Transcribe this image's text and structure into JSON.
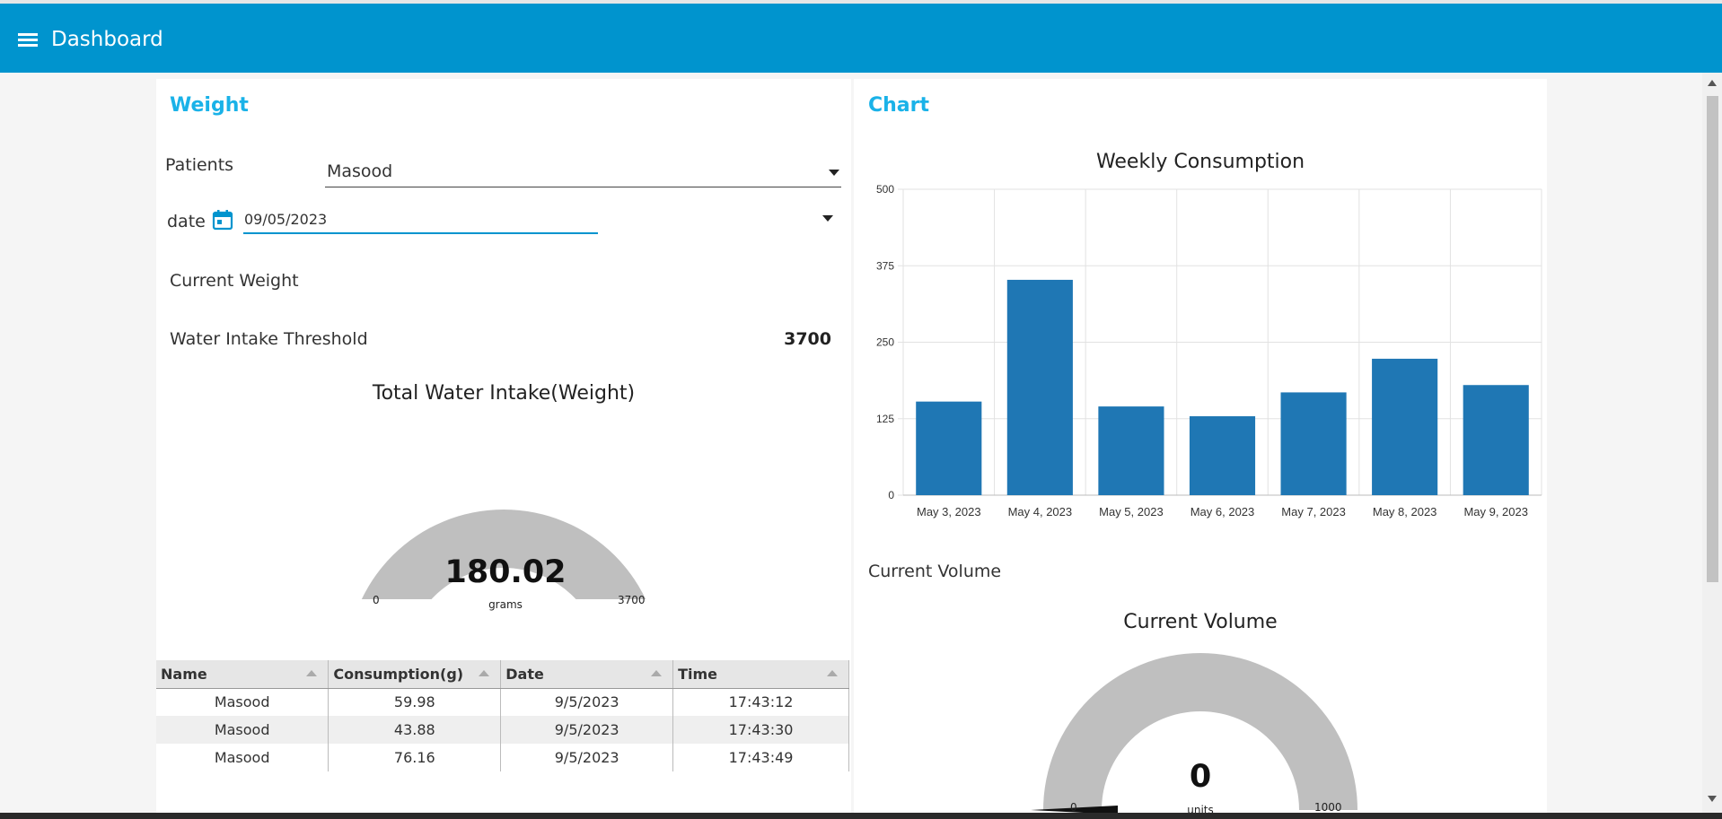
{
  "header": {
    "title": "Dashboard"
  },
  "weight_card": {
    "title": "Weight",
    "patients_label": "Patients",
    "patient_selected": "Masood",
    "date_label": "date",
    "date_value": "09/05/2023",
    "current_weight_label": "Current Weight",
    "threshold_label": "Water Intake Threshold",
    "threshold_value": "3700",
    "gauge": {
      "title": "Total Water Intake(Weight)",
      "value": "180.02",
      "value_number": 180.02,
      "units": "grams",
      "min": "0",
      "max": "3700",
      "min_number": 0,
      "max_number": 3700,
      "fill_color": "#e60000",
      "track_color": "#bfbfbf"
    },
    "table": {
      "columns": [
        "Name",
        "Consumption(g)",
        "Date",
        "Time"
      ],
      "rows": [
        [
          "Masood",
          "59.98",
          "9/5/2023",
          "17:43:12"
        ],
        [
          "Masood",
          "43.88",
          "9/5/2023",
          "17:43:30"
        ],
        [
          "Masood",
          "76.16",
          "9/5/2023",
          "17:43:49"
        ]
      ]
    }
  },
  "chart_card": {
    "title": "Chart",
    "current_volume_label": "Current Volume",
    "volume_gauge": {
      "title": "Current Volume",
      "value": "0",
      "value_number": 0,
      "units": "units",
      "min": "0",
      "max": "1000",
      "min_number": 0,
      "max_number": 1000,
      "track_color": "#bfbfbf"
    }
  },
  "chart_data": {
    "type": "bar",
    "title": "Weekly Consumption",
    "categories": [
      "May 3, 2023",
      "May 4, 2023",
      "May 5, 2023",
      "May 6, 2023",
      "May 7, 2023",
      "May 8, 2023",
      "May 9, 2023"
    ],
    "values": [
      153,
      352,
      145,
      129,
      168,
      223,
      180
    ],
    "yticks": [
      "0",
      "125",
      "250",
      "375",
      "500"
    ],
    "ylim": [
      0,
      500
    ],
    "grid": true,
    "bar_color": "#1f77b4"
  }
}
